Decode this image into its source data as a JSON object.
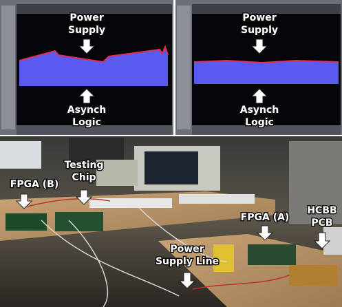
{
  "panels": [
    {
      "top_label": [
        "Power",
        "Supply"
      ],
      "bottom_label": [
        "Asynch",
        "Logic"
      ]
    },
    {
      "top_label": [
        "Power",
        "Supply"
      ],
      "bottom_label": [
        "Asynch",
        "Logic"
      ]
    }
  ],
  "photo": {
    "testing_chip": [
      "Testing",
      "Chip"
    ],
    "fpga_b": "FPGA (B)",
    "fpga_a": "FPGA (A)",
    "hcbb_pcb": [
      "HCBB",
      "PCB"
    ],
    "power_supply_line": [
      "Power",
      "Supply Line"
    ]
  }
}
